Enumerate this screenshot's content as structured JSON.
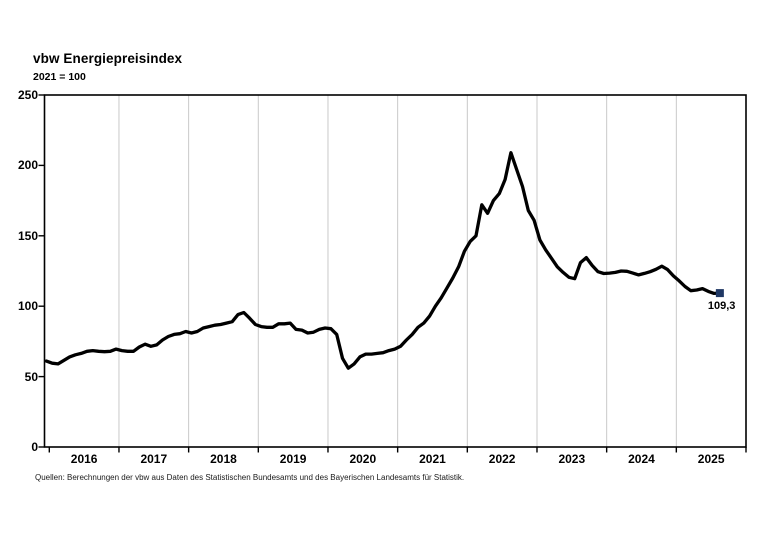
{
  "page": {
    "source": "Quellen: Berechnungen der vbw aus Daten des Statistischen Bundesamts und des Bayerischen Landesamts für Statistik."
  },
  "chart_data": {
    "type": "line",
    "title": "vbw Energiepreisindex",
    "subtitle": "2021 = 100",
    "xlabel": "",
    "ylabel": "",
    "ylim": [
      0,
      250
    ],
    "y_ticks": [
      0,
      50,
      100,
      150,
      200,
      250
    ],
    "x_tick_labels": [
      "2016",
      "2017",
      "2018",
      "2019",
      "2020",
      "2021",
      "2022",
      "2023",
      "2024",
      "2025"
    ],
    "x_start_year": 2016,
    "grid": "vertical year gridlines only",
    "legend": "none",
    "line_color": "#000000",
    "grid_color": "#c9c9c9",
    "end_marker_color": "#1f3864",
    "last_value": 109.3,
    "last_value_label": "109,3",
    "series": [
      {
        "name": "vbw Energiepreisindex (2021 = 100)",
        "points": [
          [
            "2015-12",
            61
          ],
          [
            "2016-01",
            59.5
          ],
          [
            "2016-02",
            59
          ],
          [
            "2016-03",
            61.5
          ],
          [
            "2016-04",
            64
          ],
          [
            "2016-05",
            65.5
          ],
          [
            "2016-06",
            66.5
          ],
          [
            "2016-07",
            68
          ],
          [
            "2016-08",
            68.5
          ],
          [
            "2016-09",
            68
          ],
          [
            "2016-10",
            67.7
          ],
          [
            "2016-11",
            68
          ],
          [
            "2016-12",
            69.5
          ],
          [
            "2017-01",
            68.5
          ],
          [
            "2017-02",
            68
          ],
          [
            "2017-03",
            68
          ],
          [
            "2017-04",
            71
          ],
          [
            "2017-05",
            73
          ],
          [
            "2017-06",
            71.5
          ],
          [
            "2017-07",
            72.5
          ],
          [
            "2017-08",
            76
          ],
          [
            "2017-09",
            78.5
          ],
          [
            "2017-10",
            80
          ],
          [
            "2017-11",
            80.5
          ],
          [
            "2017-12",
            82
          ],
          [
            "2018-01",
            81
          ],
          [
            "2018-02",
            82
          ],
          [
            "2018-03",
            84.5
          ],
          [
            "2018-04",
            85.5
          ],
          [
            "2018-05",
            86.5
          ],
          [
            "2018-06",
            87
          ],
          [
            "2018-07",
            88
          ],
          [
            "2018-08",
            89
          ],
          [
            "2018-09",
            94
          ],
          [
            "2018-10",
            95.5
          ],
          [
            "2018-11",
            91.5
          ],
          [
            "2018-12",
            87
          ],
          [
            "2019-01",
            85.5
          ],
          [
            "2019-02",
            85
          ],
          [
            "2019-03",
            85
          ],
          [
            "2019-04",
            87.5
          ],
          [
            "2019-05",
            87.5
          ],
          [
            "2019-06",
            88
          ],
          [
            "2019-07",
            83.5
          ],
          [
            "2019-08",
            83
          ],
          [
            "2019-09",
            81
          ],
          [
            "2019-10",
            81.5
          ],
          [
            "2019-11",
            83.5
          ],
          [
            "2019-12",
            84.5
          ],
          [
            "2020-01",
            84
          ],
          [
            "2020-02",
            80
          ],
          [
            "2020-03",
            63
          ],
          [
            "2020-04",
            56
          ],
          [
            "2020-05",
            59
          ],
          [
            "2020-06",
            64
          ],
          [
            "2020-07",
            66
          ],
          [
            "2020-08",
            66
          ],
          [
            "2020-09",
            66.5
          ],
          [
            "2020-10",
            67
          ],
          [
            "2020-11",
            68.5
          ],
          [
            "2020-12",
            69.5
          ],
          [
            "2021-01",
            71.5
          ],
          [
            "2021-02",
            76
          ],
          [
            "2021-03",
            80
          ],
          [
            "2021-04",
            85
          ],
          [
            "2021-05",
            88
          ],
          [
            "2021-06",
            93
          ],
          [
            "2021-07",
            100
          ],
          [
            "2021-08",
            106
          ],
          [
            "2021-09",
            113
          ],
          [
            "2021-10",
            120
          ],
          [
            "2021-11",
            128
          ],
          [
            "2021-12",
            139
          ],
          [
            "2022-01",
            146
          ],
          [
            "2022-02",
            150
          ],
          [
            "2022-03",
            172
          ],
          [
            "2022-04",
            166
          ],
          [
            "2022-05",
            175
          ],
          [
            "2022-06",
            180
          ],
          [
            "2022-07",
            190
          ],
          [
            "2022-08",
            209
          ],
          [
            "2022-09",
            197
          ],
          [
            "2022-10",
            185
          ],
          [
            "2022-11",
            168
          ],
          [
            "2022-12",
            161
          ],
          [
            "2023-01",
            147
          ],
          [
            "2023-02",
            140
          ],
          [
            "2023-03",
            134
          ],
          [
            "2023-04",
            128
          ],
          [
            "2023-05",
            124
          ],
          [
            "2023-06",
            120.5
          ],
          [
            "2023-07",
            119.5
          ],
          [
            "2023-08",
            131
          ],
          [
            "2023-09",
            134.5
          ],
          [
            "2023-10",
            129
          ],
          [
            "2023-11",
            124.5
          ],
          [
            "2023-12",
            123.2
          ],
          [
            "2024-01",
            123.5
          ],
          [
            "2024-02",
            124
          ],
          [
            "2024-03",
            125
          ],
          [
            "2024-04",
            124.8
          ],
          [
            "2024-05",
            123.5
          ],
          [
            "2024-06",
            122.2
          ],
          [
            "2024-07",
            123.3
          ],
          [
            "2024-08",
            124.5
          ],
          [
            "2024-09",
            126.2
          ],
          [
            "2024-10",
            128.4
          ],
          [
            "2024-11",
            126
          ],
          [
            "2024-12",
            121.5
          ],
          [
            "2025-01",
            118
          ],
          [
            "2025-02",
            114
          ],
          [
            "2025-03",
            111
          ],
          [
            "2025-04",
            111.5
          ],
          [
            "2025-05",
            112.5
          ],
          [
            "2025-06",
            110.5
          ],
          [
            "2025-07",
            109.1
          ],
          [
            "2025-08",
            109.3
          ]
        ]
      }
    ]
  }
}
